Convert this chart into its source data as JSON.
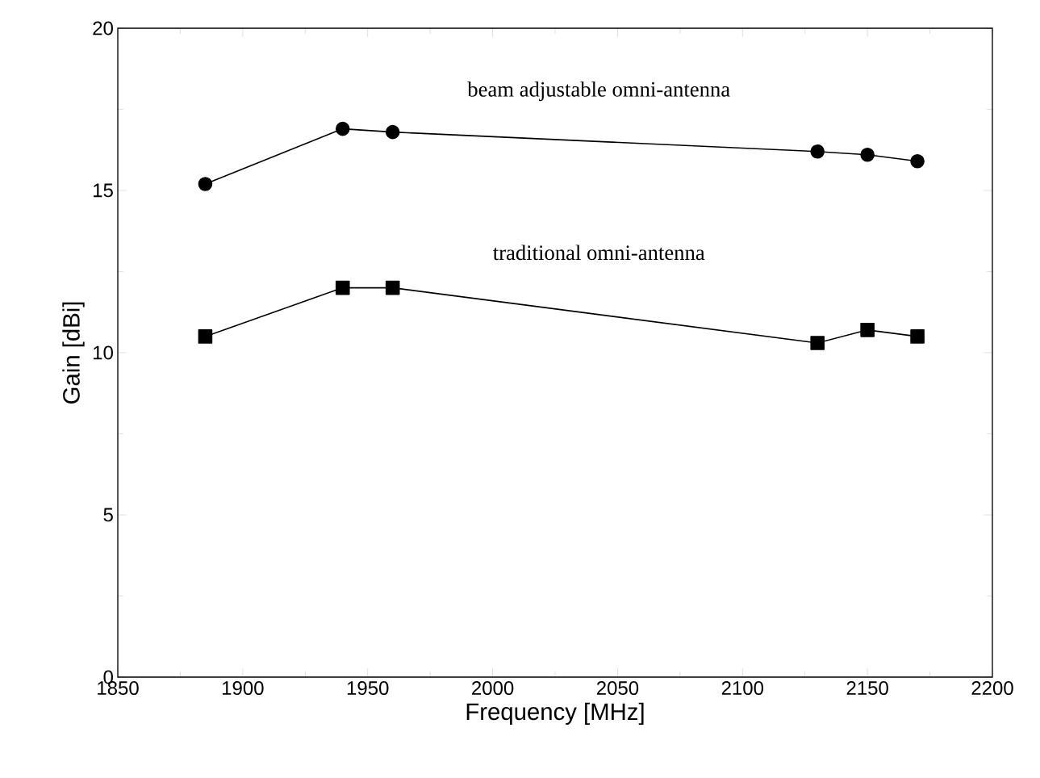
{
  "chart_data": {
    "type": "line",
    "xlabel": "Frequency [MHz]",
    "ylabel": "Gain [dBi]",
    "x": [
      1885,
      1940,
      1960,
      2130,
      2150,
      2170
    ],
    "series": [
      {
        "name": "beam adjustable omni-antenna",
        "color": "#000000",
        "marker": "circle",
        "values": [
          15.2,
          16.9,
          16.8,
          16.2,
          16.1,
          15.9
        ]
      },
      {
        "name": "traditional omni-antenna",
        "color": "#000000",
        "marker": "square",
        "values": [
          10.5,
          12.0,
          12.0,
          10.3,
          10.7,
          10.5
        ]
      }
    ],
    "xlim": [
      1850,
      2200
    ],
    "ylim": [
      0,
      20
    ],
    "xticks": [
      1850,
      1900,
      1950,
      2000,
      2050,
      2100,
      2150,
      2200
    ],
    "yticks": [
      0,
      5,
      10,
      15,
      20
    ],
    "grid": false,
    "line_style": "solid"
  }
}
